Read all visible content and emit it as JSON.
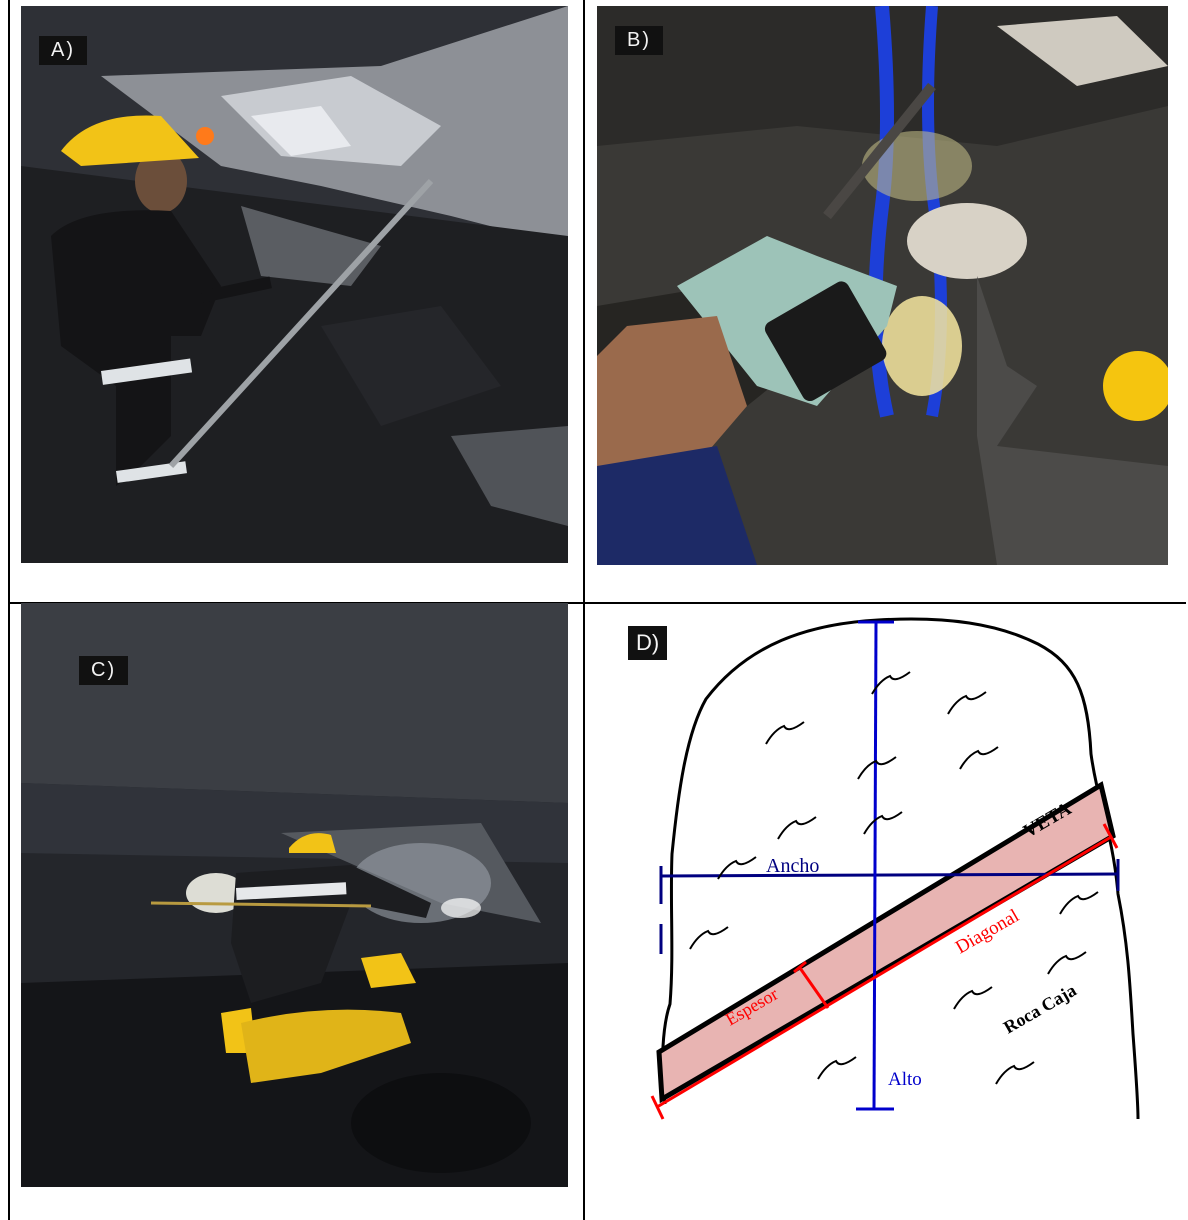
{
  "panels": {
    "a": {
      "label": "A)"
    },
    "b": {
      "label": "B)"
    },
    "c": {
      "label": "C)"
    },
    "d": {
      "label": "D)",
      "annotations": {
        "veta": "VETA",
        "ancho": "Ancho",
        "diagonal": "Diagonal",
        "espesor": "Espesor",
        "roca_caja": "Roca Caja",
        "alto": "Alto"
      }
    }
  },
  "colors": {
    "vein_fill": "#e8b4b2",
    "ancho_line": "#000080",
    "alto_line": "#0000cc",
    "diagonal_line": "#ff0000",
    "outline": "#000000"
  }
}
